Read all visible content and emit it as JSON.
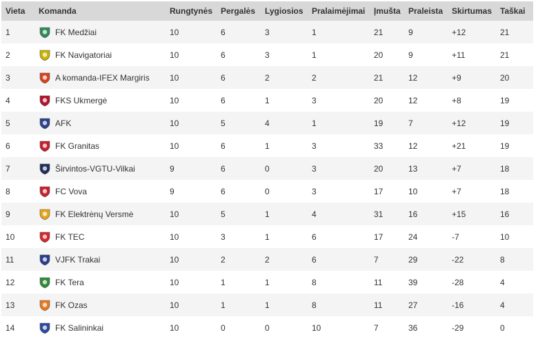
{
  "headers": {
    "place": "Vieta",
    "team": "Komanda",
    "played": "Rungtynės",
    "won": "Pergalės",
    "drawn": "Lygiosios",
    "lost": "Pralaimėjimai",
    "scored": "Įmušta",
    "conceded": "Praleista",
    "diff": "Skirtumas",
    "points": "Taškai"
  },
  "rows": [
    {
      "place": "1",
      "team": "FK Medžiai",
      "logo_icon": "fk-medziai-crest-icon",
      "logo_color": "#2e8b57",
      "played": "10",
      "won": "6",
      "drawn": "3",
      "lost": "1",
      "scored": "21",
      "conceded": "9",
      "diff": "+12",
      "points": "21"
    },
    {
      "place": "2",
      "team": "FK Navigatoriai",
      "logo_icon": "fk-navigatoriai-crest-icon",
      "logo_color": "#c8b400",
      "played": "10",
      "won": "6",
      "drawn": "3",
      "lost": "1",
      "scored": "20",
      "conceded": "9",
      "diff": "+11",
      "points": "21"
    },
    {
      "place": "3",
      "team": "A komanda-IFEX Margiris",
      "logo_icon": "a-komanda-crest-icon",
      "logo_color": "#d9421c",
      "played": "10",
      "won": "6",
      "drawn": "2",
      "lost": "2",
      "scored": "21",
      "conceded": "12",
      "diff": "+9",
      "points": "20"
    },
    {
      "place": "4",
      "team": "FKS Ukmergė",
      "logo_icon": "fks-ukmerge-crest-icon",
      "logo_color": "#b3122a",
      "played": "10",
      "won": "6",
      "drawn": "1",
      "lost": "3",
      "scored": "20",
      "conceded": "12",
      "diff": "+8",
      "points": "19"
    },
    {
      "place": "5",
      "team": "AFK",
      "logo_icon": "afk-crest-icon",
      "logo_color": "#2b3f8c",
      "played": "10",
      "won": "5",
      "drawn": "4",
      "lost": "1",
      "scored": "19",
      "conceded": "7",
      "diff": "+12",
      "points": "19"
    },
    {
      "place": "6",
      "team": "FK Granitas",
      "logo_icon": "fk-granitas-crest-icon",
      "logo_color": "#c41e2b",
      "played": "10",
      "won": "6",
      "drawn": "1",
      "lost": "3",
      "scored": "33",
      "conceded": "12",
      "diff": "+21",
      "points": "19"
    },
    {
      "place": "7",
      "team": "Širvintos-VGTU-Vilkai",
      "logo_icon": "sirvintos-vilkai-crest-icon",
      "logo_color": "#1f2f5c",
      "played": "9",
      "won": "6",
      "drawn": "0",
      "lost": "3",
      "scored": "20",
      "conceded": "13",
      "diff": "+7",
      "points": "18"
    },
    {
      "place": "8",
      "team": "FC Vova",
      "logo_icon": "fc-vova-crest-icon",
      "logo_color": "#c8202e",
      "played": "9",
      "won": "6",
      "drawn": "0",
      "lost": "3",
      "scored": "17",
      "conceded": "10",
      "diff": "+7",
      "points": "18"
    },
    {
      "place": "9",
      "team": "FK Elektrėnų Versmė",
      "logo_icon": "fk-elektrenu-versme-crest-icon",
      "logo_color": "#e8a317",
      "played": "10",
      "won": "5",
      "drawn": "1",
      "lost": "4",
      "scored": "31",
      "conceded": "16",
      "diff": "+15",
      "points": "16"
    },
    {
      "place": "10",
      "team": "FK TEC",
      "logo_icon": "fk-tec-crest-icon",
      "logo_color": "#d6262b",
      "played": "10",
      "won": "3",
      "drawn": "1",
      "lost": "6",
      "scored": "17",
      "conceded": "24",
      "diff": "-7",
      "points": "10"
    },
    {
      "place": "11",
      "team": "VJFK Trakai",
      "logo_icon": "vjfk-trakai-crest-icon",
      "logo_color": "#2a3e8e",
      "played": "10",
      "won": "2",
      "drawn": "2",
      "lost": "6",
      "scored": "7",
      "conceded": "29",
      "diff": "-22",
      "points": "8"
    },
    {
      "place": "12",
      "team": "FK Tera",
      "logo_icon": "fk-tera-crest-icon",
      "logo_color": "#2f8a3a",
      "played": "10",
      "won": "1",
      "drawn": "1",
      "lost": "8",
      "scored": "11",
      "conceded": "39",
      "diff": "-28",
      "points": "4"
    },
    {
      "place": "13",
      "team": "FK Ozas",
      "logo_icon": "fk-ozas-crest-icon",
      "logo_color": "#e87a1e",
      "played": "10",
      "won": "1",
      "drawn": "1",
      "lost": "8",
      "scored": "11",
      "conceded": "27",
      "diff": "-16",
      "points": "4"
    },
    {
      "place": "14",
      "team": "FK Salininkai",
      "logo_icon": "fk-salininkai-crest-icon",
      "logo_color": "#2b4aa0",
      "played": "10",
      "won": "0",
      "drawn": "0",
      "lost": "10",
      "scored": "7",
      "conceded": "36",
      "diff": "-29",
      "points": "0"
    }
  ]
}
